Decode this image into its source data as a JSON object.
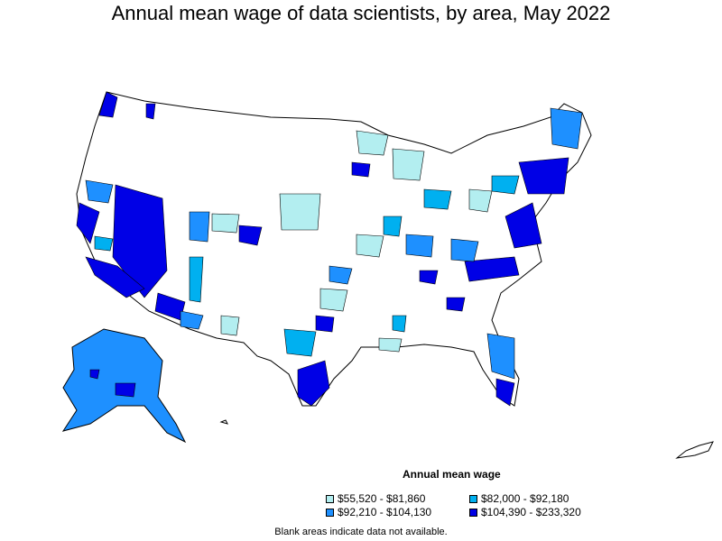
{
  "title": "Annual mean wage of data scientists, by area, May 2022",
  "legend": {
    "title": "Annual mean wage",
    "items": [
      {
        "label": "$55,520 - $81,860",
        "color": "#b3eef0"
      },
      {
        "label": "$82,000 - $92,180",
        "color": "#00b0f0"
      },
      {
        "label": "$92,210 - $104,130",
        "color": "#1e90ff"
      },
      {
        "label": "$104,390 - $233,320",
        "color": "#0000e6"
      }
    ]
  },
  "note": "Blank areas indicate data not available."
}
